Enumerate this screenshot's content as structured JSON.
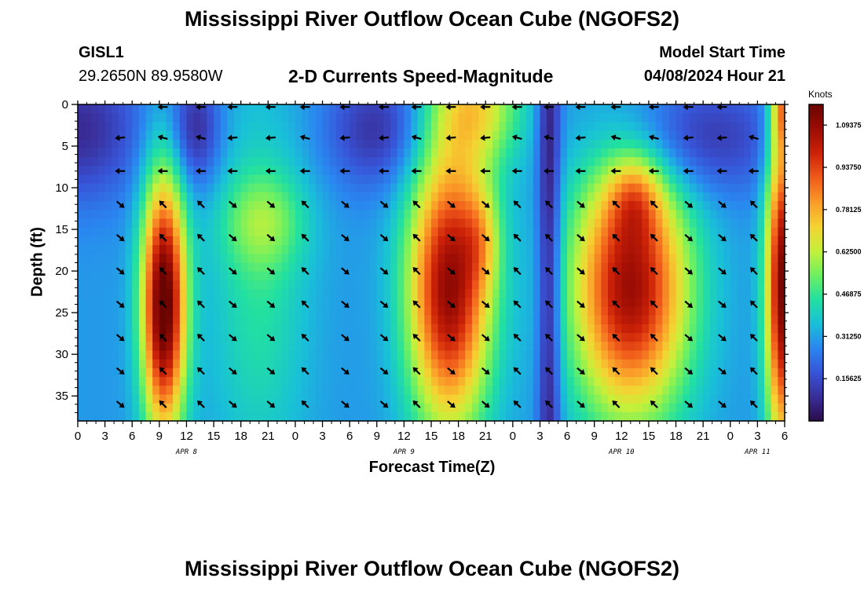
{
  "page": {
    "title": "Mississippi River Outflow Ocean Cube (NGOFS2)",
    "title_repeat": "Mississippi River Outflow Ocean Cube (NGOFS2)",
    "station_id": "GISL1",
    "station_coords": "29.2650N  89.9580W",
    "subtitle": "2-D Currents Speed-Magnitude",
    "model_start_label": "Model Start Time",
    "model_start_value": "04/08/2024 Hour 21"
  },
  "chart_data": {
    "type": "heatmap",
    "title": "2-D Currents Speed-Magnitude",
    "xlabel": "Forecast Time(Z)",
    "ylabel": "Depth (ft)",
    "x_range_hours": [
      0,
      78
    ],
    "ylim": [
      0,
      38
    ],
    "x_ticks": [
      {
        "h": 0,
        "label": "0"
      },
      {
        "h": 3,
        "label": "3"
      },
      {
        "h": 6,
        "label": "6"
      },
      {
        "h": 9,
        "label": "9"
      },
      {
        "h": 12,
        "label": "12"
      },
      {
        "h": 15,
        "label": "15"
      },
      {
        "h": 18,
        "label": "18"
      },
      {
        "h": 21,
        "label": "21"
      },
      {
        "h": 24,
        "label": "0"
      },
      {
        "h": 27,
        "label": "3"
      },
      {
        "h": 30,
        "label": "6"
      },
      {
        "h": 33,
        "label": "9"
      },
      {
        "h": 36,
        "label": "12"
      },
      {
        "h": 39,
        "label": "15"
      },
      {
        "h": 42,
        "label": "18"
      },
      {
        "h": 45,
        "label": "21"
      },
      {
        "h": 48,
        "label": "0"
      },
      {
        "h": 51,
        "label": "3"
      },
      {
        "h": 54,
        "label": "6"
      },
      {
        "h": 57,
        "label": "9"
      },
      {
        "h": 60,
        "label": "12"
      },
      {
        "h": 63,
        "label": "15"
      },
      {
        "h": 66,
        "label": "18"
      },
      {
        "h": 69,
        "label": "21"
      },
      {
        "h": 72,
        "label": "0"
      },
      {
        "h": 75,
        "label": "3"
      },
      {
        "h": 78,
        "label": "6"
      }
    ],
    "date_labels": [
      {
        "h": 12,
        "label": "APR 8"
      },
      {
        "h": 36,
        "label": "APR 9"
      },
      {
        "h": 60,
        "label": "APR 10"
      },
      {
        "h": 75,
        "label": "APR 11"
      }
    ],
    "y_ticks": [
      0,
      5,
      10,
      15,
      20,
      25,
      30,
      35
    ],
    "colorbar": {
      "unit": "Knots",
      "min": 0.0,
      "max": 1.17,
      "tick_labels": [
        {
          "v": 0.15625,
          "label": "0.15625"
        },
        {
          "v": 0.3125,
          "label": "0.31250"
        },
        {
          "v": 0.46875,
          "label": "0.46875"
        },
        {
          "v": 0.625,
          "label": "0.62500"
        },
        {
          "v": 0.78125,
          "label": "0.78125"
        },
        {
          "v": 0.9375,
          "label": "0.93750"
        },
        {
          "v": 1.09375,
          "label": "1.09375"
        }
      ],
      "colors": [
        "#2a0c4a",
        "#3a2e9a",
        "#3755d8",
        "#2a86f0",
        "#19c0d8",
        "#22e0a0",
        "#6ff060",
        "#c6f03a",
        "#f5d232",
        "#fa9a28",
        "#f05a1a",
        "#cc2208",
        "#9c0c04",
        "#6a0400"
      ]
    },
    "speed_features": [
      {
        "h": 9.5,
        "d": 24,
        "sh": 1.7,
        "sd": 11,
        "v": 0.92
      },
      {
        "h": 20.5,
        "d": 14,
        "sh": 3.2,
        "sd": 4.0,
        "v": 0.18
      },
      {
        "h": 20.0,
        "d": 22,
        "sh": 3.8,
        "sd": 16,
        "v": 0.15
      },
      {
        "h": 41.0,
        "d": 22,
        "sh": 3.2,
        "sd": 12,
        "v": 0.8
      },
      {
        "h": 44.5,
        "d": 16,
        "sh": 1.5,
        "sd": 4.5,
        "v": 0.18
      },
      {
        "h": 44.0,
        "d": 0,
        "sh": 3.5,
        "sd": 5.0,
        "v": 0.35
      },
      {
        "h": 61.0,
        "d": 22,
        "sh": 4.5,
        "sd": 11,
        "v": 0.78
      },
      {
        "h": 61.5,
        "d": 11,
        "sh": 2.0,
        "sd": 3.5,
        "v": 0.22
      },
      {
        "h": 77.8,
        "d": 22,
        "sh": 1.3,
        "sd": 14,
        "v": 0.85
      },
      {
        "h": 78.0,
        "d": 0,
        "sh": 1.0,
        "sd": 4.0,
        "v": 0.4
      }
    ],
    "calm_features": [
      {
        "h": 0,
        "d": 3,
        "sh": 5,
        "sd": 6,
        "v": 0.22
      },
      {
        "h": 13,
        "d": 3,
        "sh": 2,
        "sd": 5,
        "v": 0.22
      },
      {
        "h": 33,
        "d": 3,
        "sh": 4,
        "sd": 5,
        "v": 0.2
      },
      {
        "h": 52,
        "d": 19,
        "sh": 0.9,
        "sd": 40,
        "v": 0.28
      },
      {
        "h": 68,
        "d": 4,
        "sh": 7,
        "sd": 5,
        "v": 0.2
      }
    ],
    "background_speed": 0.3,
    "vector_columns_h": [
      4.7,
      9.4,
      13.6,
      17.1,
      21.3,
      25.1,
      29.5,
      33.8,
      37.4,
      41.2,
      45.0,
      48.5,
      52.0,
      55.5,
      59.4,
      63.6,
      67.4,
      71.1,
      74.6
    ],
    "vector_rows_d": [
      0.3,
      4,
      8,
      12,
      16,
      20,
      24,
      28,
      32,
      36
    ],
    "vector_directions_note": "upper rows (depth<=8 ft) flow westward, deeper rows flow south-east / north-west by tidal phase"
  }
}
